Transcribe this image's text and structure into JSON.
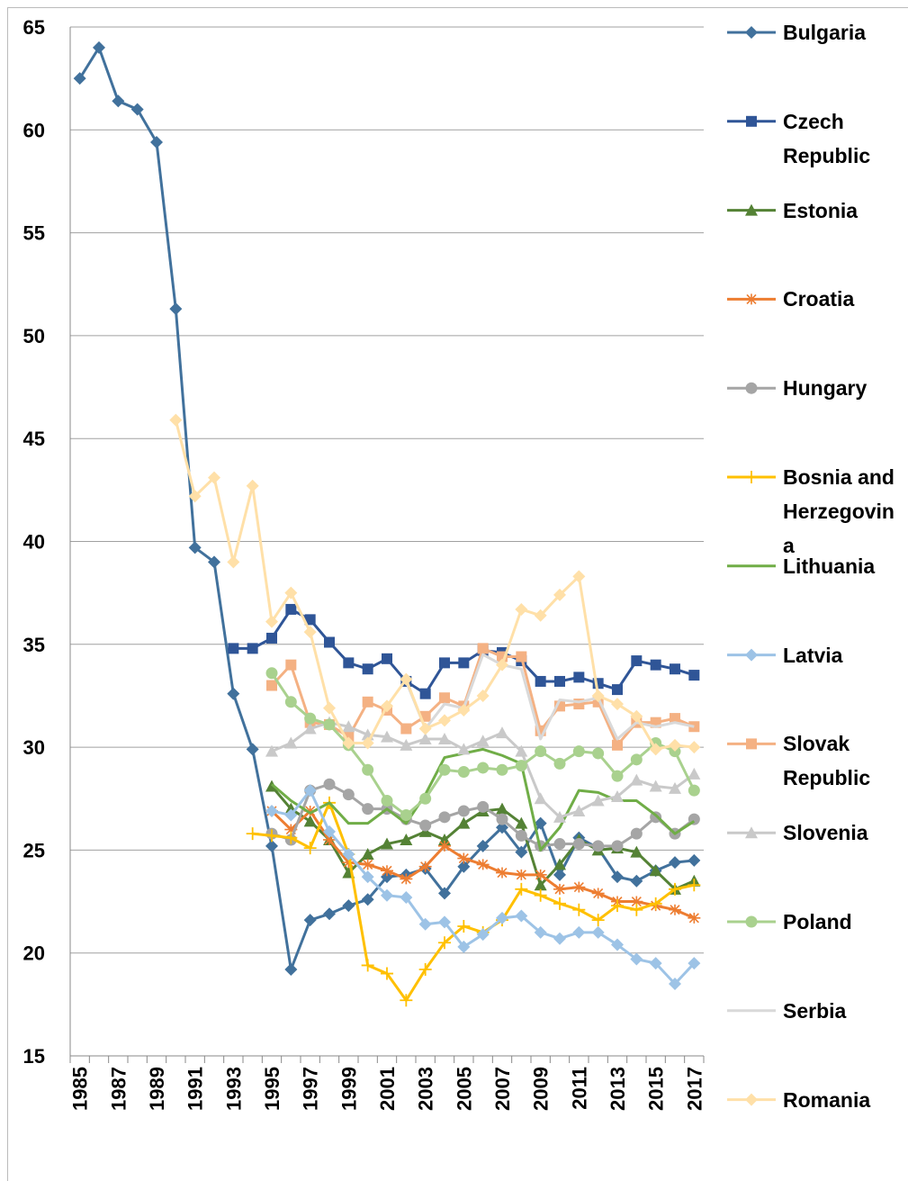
{
  "chart_data": {
    "type": "line",
    "categories": [
      "1985",
      null,
      "1987",
      null,
      "1989",
      null,
      "1991",
      null,
      "1993",
      null,
      "1995",
      null,
      "1997",
      null,
      "1999",
      null,
      "2001",
      null,
      "2003",
      null,
      "2005",
      null,
      "2007",
      null,
      "2009",
      null,
      "2011",
      null,
      "2013",
      null,
      "2015",
      null,
      "2017"
    ],
    "ylim": [
      15,
      65
    ],
    "yticks": [
      15,
      20,
      25,
      30,
      35,
      40,
      45,
      50,
      55,
      60,
      65
    ],
    "grid": true,
    "legend": "right",
    "series": [
      {
        "name": "Bulgaria",
        "color": "#41719c",
        "marker": "diamond",
        "values": [
          62.5,
          64,
          61.4,
          61,
          59.4,
          51.3,
          39.7,
          39,
          32.6,
          29.9,
          25.2,
          19.2,
          21.6,
          21.9,
          22.3,
          22.6,
          23.7,
          23.8,
          24.1,
          22.9,
          24.2,
          25.2,
          26.1,
          24.9,
          26.3,
          23.8,
          25.6,
          25.1,
          23.7,
          23.5,
          24.0,
          24.4,
          24.5
        ]
      },
      {
        "name": "Czech Republic",
        "color": "#2f5597",
        "marker": "square",
        "values": [
          null,
          null,
          null,
          null,
          null,
          null,
          null,
          null,
          34.8,
          34.8,
          35.3,
          36.7,
          36.2,
          35.1,
          34.1,
          33.8,
          34.3,
          33.2,
          32.6,
          34.1,
          34.1,
          34.7,
          34.6,
          34.2,
          33.2,
          33.2,
          33.4,
          33.1,
          32.8,
          34.2,
          34.0,
          33.8,
          33.5
        ]
      },
      {
        "name": "Estonia",
        "color": "#548235",
        "marker": "triangle",
        "values": [
          null,
          null,
          null,
          null,
          null,
          null,
          null,
          null,
          null,
          null,
          28.1,
          27.0,
          26.4,
          25.5,
          23.9,
          24.8,
          25.3,
          25.5,
          25.9,
          25.5,
          26.3,
          26.9,
          27.0,
          26.3,
          23.3,
          24.3,
          25.5,
          25.0,
          25.1,
          24.9,
          24.0,
          23.1,
          23.5
        ]
      },
      {
        "name": "Croatia",
        "color": "#ed7d31",
        "marker": "star",
        "values": [
          null,
          null,
          null,
          null,
          null,
          null,
          null,
          null,
          null,
          null,
          26.9,
          26.0,
          26.9,
          25.5,
          24.4,
          24.3,
          24.0,
          23.6,
          24.2,
          25.2,
          24.6,
          24.3,
          23.9,
          23.8,
          23.8,
          23.1,
          23.2,
          22.9,
          22.5,
          22.5,
          22.3,
          22.1,
          21.7
        ]
      },
      {
        "name": "Hungary",
        "color": "#a5a5a5",
        "marker": "circle",
        "values": [
          null,
          null,
          null,
          null,
          null,
          null,
          null,
          null,
          null,
          null,
          25.8,
          25.5,
          27.9,
          28.2,
          27.7,
          27.0,
          27.0,
          26.5,
          26.2,
          26.6,
          26.9,
          27.1,
          26.5,
          25.7,
          25.2,
          25.3,
          25.3,
          25.2,
          25.2,
          25.8,
          26.6,
          25.8,
          26.5
        ]
      },
      {
        "name": "Bosnia and Herzegovina",
        "color": "#ffc000",
        "marker": "plus",
        "values": [
          null,
          null,
          null,
          null,
          null,
          null,
          null,
          null,
          null,
          25.8,
          25.7,
          25.6,
          25.1,
          27.3,
          24.8,
          19.4,
          19.0,
          17.7,
          19.2,
          20.5,
          21.3,
          21.0,
          21.6,
          23.1,
          22.8,
          22.4,
          22.1,
          21.6,
          22.3,
          22.1,
          22.4,
          23.1,
          23.3
        ]
      },
      {
        "name": "Lithuania",
        "color": "#70ad47",
        "marker": "none",
        "values": [
          null,
          null,
          null,
          null,
          null,
          null,
          null,
          null,
          null,
          null,
          28.2,
          27.4,
          26.8,
          27.3,
          26.3,
          26.3,
          27.0,
          26.3,
          27.7,
          29.5,
          29.7,
          29.9,
          29.6,
          29.2,
          25.0,
          26.1,
          27.9,
          27.8,
          27.4,
          27.4,
          26.7,
          25.8,
          26.4
        ]
      },
      {
        "name": "Latvia",
        "color": "#9dc3e6",
        "marker": "diamond",
        "values": [
          null,
          null,
          null,
          null,
          null,
          null,
          null,
          null,
          null,
          null,
          26.9,
          26.7,
          27.9,
          25.9,
          24.8,
          23.7,
          22.8,
          22.7,
          21.4,
          21.5,
          20.3,
          20.9,
          21.7,
          21.8,
          21.0,
          20.7,
          21.0,
          21.0,
          20.4,
          19.7,
          19.5,
          18.5,
          19.5
        ]
      },
      {
        "name": "Slovak Republic",
        "color": "#f4b183",
        "marker": "square",
        "values": [
          null,
          null,
          null,
          null,
          null,
          null,
          null,
          null,
          null,
          null,
          33.0,
          34.0,
          31.2,
          31.1,
          30.5,
          32.2,
          31.8,
          30.9,
          31.5,
          32.4,
          32.0,
          34.8,
          34.4,
          34.4,
          30.8,
          32.0,
          32.1,
          32.2,
          30.1,
          31.2,
          31.2,
          31.4,
          31.0
        ]
      },
      {
        "name": "Slovenia",
        "color": "#c9c9c9",
        "marker": "triangle",
        "values": [
          null,
          null,
          null,
          null,
          null,
          null,
          null,
          null,
          null,
          null,
          29.8,
          30.2,
          30.9,
          31.2,
          31.0,
          30.6,
          30.5,
          30.1,
          30.4,
          30.4,
          29.9,
          30.3,
          30.7,
          29.8,
          27.5,
          26.6,
          26.9,
          27.4,
          27.6,
          28.4,
          28.1,
          28.0,
          28.7
        ]
      },
      {
        "name": "Poland",
        "color": "#a9d18e",
        "marker": "circle",
        "values": [
          null,
          null,
          null,
          null,
          null,
          null,
          null,
          null,
          null,
          null,
          33.6,
          32.2,
          31.4,
          31.1,
          30.1,
          28.9,
          27.4,
          26.7,
          27.5,
          28.9,
          28.8,
          29.0,
          28.9,
          29.1,
          29.8,
          29.2,
          29.8,
          29.7,
          28.6,
          29.4,
          30.2,
          29.8,
          27.9
        ]
      },
      {
        "name": "Serbia",
        "color": "#d9d9d9",
        "marker": "none",
        "values": [
          null,
          null,
          null,
          null,
          null,
          null,
          null,
          null,
          null,
          null,
          null,
          null,
          null,
          null,
          null,
          null,
          null,
          33.2,
          30.9,
          32.1,
          31.9,
          34.5,
          34.0,
          33.8,
          30.4,
          32.3,
          32.2,
          32.4,
          30.4,
          31.2,
          31.0,
          31.2,
          31.0
        ]
      },
      {
        "name": "Romania",
        "color": "#ffe0a8",
        "marker": "diamond",
        "values": [
          null,
          null,
          null,
          null,
          null,
          45.9,
          42.2,
          43.1,
          39.0,
          42.7,
          36.1,
          37.5,
          35.6,
          31.9,
          30.2,
          30.2,
          32.0,
          33.3,
          30.9,
          31.3,
          31.8,
          32.5,
          34.0,
          36.7,
          36.4,
          37.4,
          38.3,
          32.5,
          32.1,
          31.5,
          29.9,
          30.1,
          30.0
        ]
      }
    ]
  }
}
